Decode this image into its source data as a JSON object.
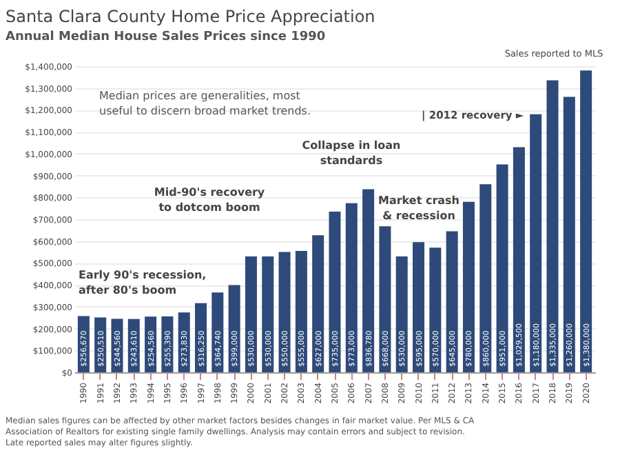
{
  "chart_data": {
    "type": "bar",
    "title": "Santa Clara County Home Price Appreciation",
    "subtitle": "Annual Median House Sales Prices since 1990",
    "categories": [
      "1990",
      "1991",
      "1992",
      "1993",
      "1994",
      "1995",
      "1996",
      "1997",
      "1998",
      "1999",
      "2000",
      "2001",
      "2002",
      "2003",
      "2004",
      "2005",
      "2006",
      "2007",
      "2008",
      "2009",
      "2010",
      "2011",
      "2012",
      "2013",
      "2014",
      "2015",
      "2016",
      "2017",
      "2018",
      "2019",
      "2020"
    ],
    "values": [
      256670,
      250510,
      244560,
      243610,
      254560,
      255390,
      273830,
      316250,
      364740,
      399000,
      530000,
      530000,
      550000,
      555000,
      627000,
      735000,
      773000,
      836780,
      668000,
      530000,
      595000,
      570000,
      645000,
      780000,
      860000,
      951000,
      1029500,
      1180000,
      1335000,
      1260000,
      1380000
    ],
    "color": "#2e4a7a",
    "value_labels": [
      "$256,670",
      "$250,510",
      "$244,560",
      "$243,610",
      "$254,560",
      "$255,390",
      "$273,830",
      "$316,250",
      "$364,740",
      "$399,000",
      "$530,000",
      "$530,000",
      "$550,000",
      "$555,000",
      "$627,000",
      "$735,000",
      "$773,000",
      "$836,780",
      "$668,000",
      "$530,000",
      "$595,000",
      "$570,000",
      "$645,000",
      "$780,000",
      "$860,000",
      "$951,000",
      "$1,029,500",
      "$1,180,000",
      "$1,335,000",
      "$1,260,000",
      "$1,380,000"
    ],
    "ylim": [
      0,
      1400000
    ],
    "yticks": [
      {
        "value": 0,
        "label": "$0"
      },
      {
        "value": 100000,
        "label": "$100,000"
      },
      {
        "value": 200000,
        "label": "$200,000"
      },
      {
        "value": 300000,
        "label": "$300,000"
      },
      {
        "value": 400000,
        "label": "$400,000"
      },
      {
        "value": 500000,
        "label": "$500,000"
      },
      {
        "value": 600000,
        "label": "$600,000"
      },
      {
        "value": 700000,
        "label": "$700,000"
      },
      {
        "value": 800000,
        "label": "$800,000"
      },
      {
        "value": 900000,
        "label": "$900,000"
      },
      {
        "value": 1000000,
        "label": "$1,000,000"
      },
      {
        "value": 1100000,
        "label": "$1,100,000"
      },
      {
        "value": 1200000,
        "label": "$1,200,000"
      },
      {
        "value": 1300000,
        "label": "$1,300,000"
      },
      {
        "value": 1400000,
        "label": "$1,400,000"
      }
    ],
    "grid": "y",
    "annotations": [
      "Sales reported to MLS",
      "Median prices are generalities, most\nuseful to discern broad market trends.",
      "Early 90's recession,\nafter 80's boom",
      "Mid-90's recovery\nto dotcom boom",
      "Collapse in loan\nstandards",
      "Market crash\n& recession",
      "| 2012 recovery ►",
      "Median sales figures can be affected by other market factors besides changes in fair market value. Per MLS & CA\nAssociation of Realtors for existing single family dwellings. Analysis may contain errors and subject to revision.\nLate reported sales may alter figures slightly."
    ]
  }
}
